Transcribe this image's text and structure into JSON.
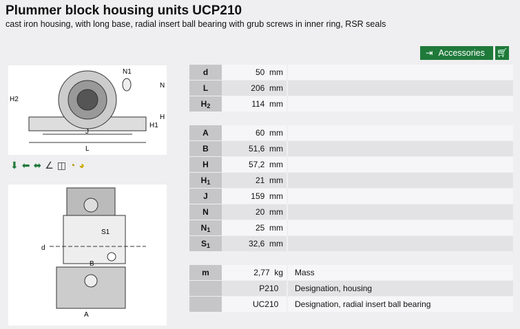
{
  "title": "Plummer block housing units UCP210",
  "subtitle": "cast iron housing, with long base, radial insert ball bearing with grub screws in inner ring, RSR seals",
  "accessories_label": "Accessories",
  "icons": [
    "radial-load-icon",
    "axial-load-icon",
    "bidirectional-axial-load-icon",
    "misalignment-icon",
    "seal-icon",
    "rating-life-icon",
    "lubrication-icon"
  ],
  "drawing_labels": {
    "h2": "H2",
    "n1": "N1",
    "n": "N",
    "h": "H",
    "h1": "H1",
    "j": "J",
    "l": "L",
    "s1": "S1",
    "d": "d",
    "b": "B",
    "a": "A"
  },
  "groups": [
    [
      {
        "sym": "d",
        "val": "50",
        "unit": "mm",
        "desc": ""
      },
      {
        "sym": "L",
        "val": "206",
        "unit": "mm",
        "desc": ""
      },
      {
        "sym": "H",
        "sub": "2",
        "val": "114",
        "unit": "mm",
        "desc": ""
      }
    ],
    [
      {
        "sym": "A",
        "val": "60",
        "unit": "mm",
        "desc": ""
      },
      {
        "sym": "B",
        "val": "51,6",
        "unit": "mm",
        "desc": ""
      },
      {
        "sym": "H",
        "val": "57,2",
        "unit": "mm",
        "desc": ""
      },
      {
        "sym": "H",
        "sub": "1",
        "val": "21",
        "unit": "mm",
        "desc": ""
      },
      {
        "sym": "J",
        "val": "159",
        "unit": "mm",
        "desc": ""
      },
      {
        "sym": "N",
        "val": "20",
        "unit": "mm",
        "desc": ""
      },
      {
        "sym": "N",
        "sub": "1",
        "val": "25",
        "unit": "mm",
        "desc": ""
      },
      {
        "sym": "S",
        "sub": "1",
        "val": "32,6",
        "unit": "mm",
        "desc": ""
      }
    ],
    [
      {
        "sym": "m",
        "val": "2,77",
        "unit": "kg",
        "desc": "Mass"
      },
      {
        "sym": "",
        "val": "P210",
        "unit": "",
        "desc": "Designation, housing"
      },
      {
        "sym": "",
        "val": "UC210",
        "unit": "",
        "desc": "Designation, radial insert ball bearing"
      }
    ]
  ],
  "colors": {
    "accent": "#1f7a3a"
  }
}
